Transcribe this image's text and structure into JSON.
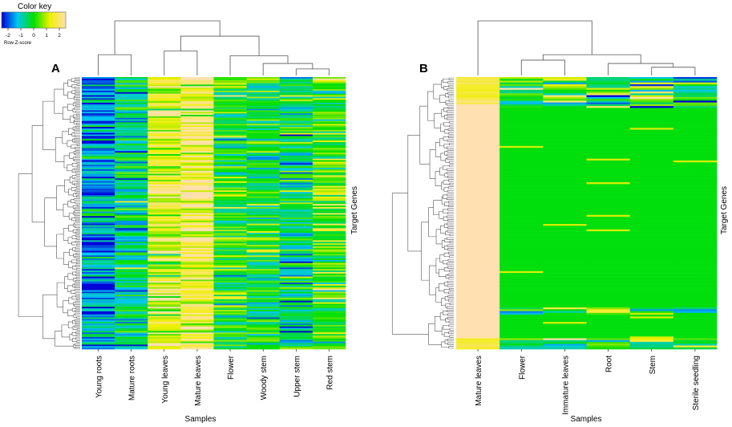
{
  "color_key": {
    "title": "Color key",
    "ticks": [
      "-2",
      "-1",
      "0",
      "1",
      "2"
    ],
    "axis_label": "Row Z-score",
    "colors": [
      "#0000d8",
      "#00c8f0",
      "#00e000",
      "#f0f000",
      "#ffe0b0"
    ]
  },
  "chart_data": [
    {
      "type": "heatmap",
      "panel_label": "A",
      "xlabel": "Samples",
      "ylabel": "Target Genes",
      "columns": [
        "Young roots",
        "Mature roots",
        "Young leaves",
        "Mature leaves",
        "Flower",
        "Woody stem",
        "Upper stem",
        "Red stem"
      ],
      "row_count": 180,
      "value_range": [
        -2,
        2
      ],
      "column_profile_z": [
        -1.2,
        -0.6,
        1.0,
        1.4,
        0.0,
        -0.2,
        -0.4,
        0.3
      ],
      "column_dendrogram": "((Young roots, Mature roots), ((Young leaves, Mature leaves), (Flower, (Woody stem, (Upper stem, Red stem)))))",
      "row_dendrogram": true
    },
    {
      "type": "heatmap",
      "panel_label": "B",
      "xlabel": "Samples",
      "ylabel": "Target Genes",
      "columns": [
        "Mature leaves",
        "Flower",
        "Immature leaves",
        "Root",
        "Stem",
        "Sterile seedling"
      ],
      "row_count": 150,
      "value_range": [
        -2,
        2
      ],
      "column_profile_z": [
        2.0,
        -0.4,
        -0.4,
        -0.4,
        -0.4,
        -0.4
      ],
      "column_dendrogram": "(Mature leaves, ((Flower, Immature leaves), (Root, (Stem, Sterile seedling))))",
      "row_dendrogram": true
    }
  ]
}
